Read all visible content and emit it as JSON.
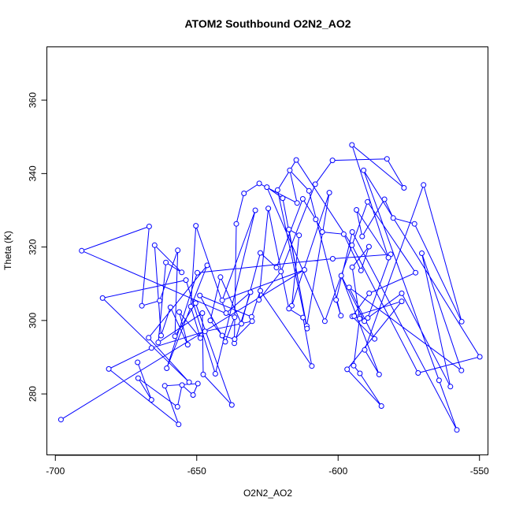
{
  "chart_data": {
    "type": "line",
    "title": "ATOM2 Southbound O2N2_AO2",
    "xlabel": "O2N2_AO2",
    "ylabel": "Theta (K)",
    "xlim": [
      -703,
      -547
    ],
    "ylim": [
      263.4,
      374.5
    ],
    "x_ticks": [
      -700,
      -650,
      -600,
      -550
    ],
    "y_ticks": [
      280,
      300,
      320,
      340,
      360
    ],
    "grid": false,
    "legend": "none",
    "markers": "open-circle",
    "color": "#0000ff",
    "series": [
      {
        "x": [
          -698.0,
          -611.9,
          -641.0,
          -629.3,
          -643.4,
          -653.8,
          -683.3,
          -652.7,
          -667.0,
          -646.3,
          -660.6,
          -649.8,
          -601.9,
          -581.4,
          -589.5,
          -577.5,
          -560.3,
          -570.4,
          -556.4,
          -596.1,
          -587.1,
          -595.0,
          -589.0,
          -572.6,
          -589.6,
          -604.7,
          -625.2,
          -619.6,
          -611.1,
          -603.1,
          -616.4,
          -613.8,
          -617.4,
          -611.0,
          -621.4,
          -614.8,
          -595.1,
          -571.7,
          -549.9,
          -591.0,
          -564.3,
          -558.0,
          -595.0,
          -600.7,
          -599.0,
          -610.3,
          -617.1,
          -614.5,
          -627.9,
          -633.3,
          -636.0,
          -636.7,
          -631.0,
          -639.6,
          -650.3,
          -652.1,
          -648.7,
          -656.2,
          -653.2,
          -659.3,
          -662.6,
          -664.9,
          -655.3,
          -660.9,
          -663.6,
          -648.0,
          -647.7,
          -637.6,
          -650.4,
          -657.7,
          -656.7,
          -663.1,
          -669.4,
          -666.8,
          -690.7,
          -636.6,
          -639.9,
          -648.9,
          -630.6,
          -627.5,
          -609.3,
          -612.4,
          -617.4,
          -624.7,
          -628.0,
          -620.2,
          -608.1,
          -602.0,
          -582.7,
          -576.7,
          -595.1,
          -582.2,
          -593.5,
          -591.5,
          -583.6,
          -580.5,
          -573.0,
          -556.3,
          -569.8,
          -590.6,
          -585.5,
          -598.9,
          -590.7,
          -594.3,
          -577.5,
          -596.8,
          -584.7,
          -592.3,
          -594.5,
          -592.4,
          -595.0,
          -589.1,
          -591.9,
          -598.0,
          -605.6,
          -607.9,
          -612.5,
          -621.8,
          -627.5,
          -634.2,
          -641.6,
          -645.2,
          -641.0,
          -636.6,
          -630.4,
          -647.1,
          -666.0,
          -681.1,
          -656.4,
          -661.3,
          -649.6,
          -651.3,
          -655.2,
          -656.8,
          -670.7,
          -666.0,
          -670.9
        ],
        "y": [
          273.0,
          313.8,
          305.5,
          330.0,
          285.5,
          311.0,
          306.1,
          283.2,
          295.3,
          315.0,
          287.0,
          313.0,
          316.8,
          318.0,
          300.7,
          307.4,
          282.0,
          318.3,
          286.4,
          309.0,
          295.0,
          301.1,
          307.4,
          313.0,
          332.3,
          299.8,
          336.3,
          333.3,
          298.5,
          334.8,
          304.0,
          323.2,
          324.8,
          297.8,
          335.5,
          343.7,
          320.5,
          285.7,
          290.1,
          340.9,
          283.7,
          270.2,
          324.1,
          305.6,
          301.3,
          335.3,
          340.9,
          332.0,
          337.3,
          334.6,
          326.3,
          293.8,
          307.7,
          302.0,
          325.8,
          303.8,
          295.2,
          302.3,
          293.4,
          303.6,
          295.9,
          320.5,
          313.1,
          315.8,
          294.0,
          302.0,
          285.3,
          277.0,
          304.7,
          295.7,
          319.1,
          305.4,
          304.0,
          325.6,
          319.0,
          300.9,
          294.2,
          306.8,
          301.0,
          308.1,
          287.6,
          300.8,
          303.2,
          330.5,
          305.6,
          313.3,
          337.1,
          343.6,
          344.0,
          336.1,
          347.8,
          317.1,
          330.1,
          322.9,
          333.0,
          327.9,
          326.3,
          299.7,
          336.9,
          292.0,
          285.3,
          312.2,
          299.8,
          301.2,
          305.2,
          286.7,
          276.7,
          285.6,
          287.7,
          300.5,
          314.5,
          320.1,
          313.6,
          323.5,
          324.1,
          327.5,
          333.1,
          314.4,
          318.4,
          299.1,
          311.8,
          300.0,
          295.9,
          294.9,
          299.8,
          297.0,
          292.5,
          286.8,
          271.7,
          282.2,
          282.8,
          279.7,
          282.4,
          276.5,
          284.3,
          278.4,
          288.6
        ]
      }
    ]
  }
}
